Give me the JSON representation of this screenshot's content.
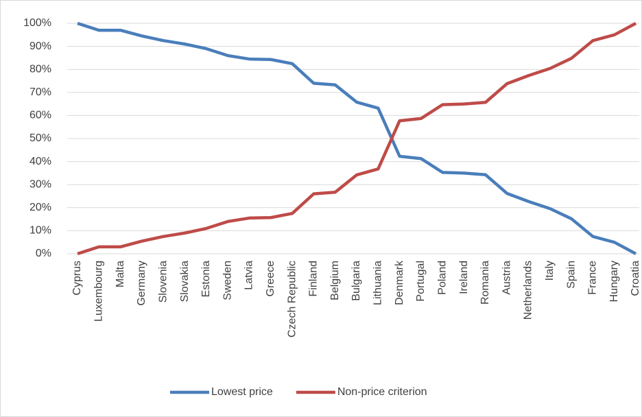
{
  "chart_data": {
    "type": "line",
    "categories": [
      "Cyprus",
      "Luxembourg",
      "Malta",
      "Germany",
      "Slovenia",
      "Slovakia",
      "Estonia",
      "Sweden",
      "Latvia",
      "Greece",
      "Czech Republic",
      "Finland",
      "Belgium",
      "Bulgaria",
      "Lithuania",
      "Denmark",
      "Portugal",
      "Poland",
      "Ireland",
      "Romania",
      "Austria",
      "Netherlands",
      "Italy",
      "Spain",
      "France",
      "Hungary",
      "Croatia"
    ],
    "series": [
      {
        "name": "Lowest price",
        "color": "#4a7ebb",
        "values": [
          100,
          97,
          97,
          94.5,
          92.5,
          91,
          89,
          86,
          84.5,
          84.3,
          82.5,
          74,
          73.3,
          65.8,
          63.2,
          42.3,
          41.3,
          35.3,
          35,
          34.3,
          26.2,
          22.7,
          19.6,
          15.2,
          7.5,
          5,
          0
        ]
      },
      {
        "name": "Non-price criterion",
        "color": "#be4b48",
        "values": [
          0,
          3,
          3,
          5.5,
          7.5,
          9,
          11,
          14,
          15.5,
          15.7,
          17.5,
          26,
          26.7,
          34.2,
          36.8,
          57.7,
          58.7,
          64.7,
          65,
          65.7,
          73.8,
          77.3,
          80.4,
          84.8,
          92.5,
          95,
          100
        ]
      }
    ],
    "ylim": [
      0,
      100
    ],
    "yticks": [
      {
        "value": 0,
        "label": "0%"
      },
      {
        "value": 10,
        "label": "10%"
      },
      {
        "value": 20,
        "label": "20%"
      },
      {
        "value": 30,
        "label": "30%"
      },
      {
        "value": 40,
        "label": "40%"
      },
      {
        "value": 50,
        "label": "50%"
      },
      {
        "value": 60,
        "label": "60%"
      },
      {
        "value": 70,
        "label": "70%"
      },
      {
        "value": 80,
        "label": "80%"
      },
      {
        "value": 90,
        "label": "90%"
      },
      {
        "value": 100,
        "label": "100%"
      }
    ],
    "grid": true,
    "legend": "bottom"
  }
}
